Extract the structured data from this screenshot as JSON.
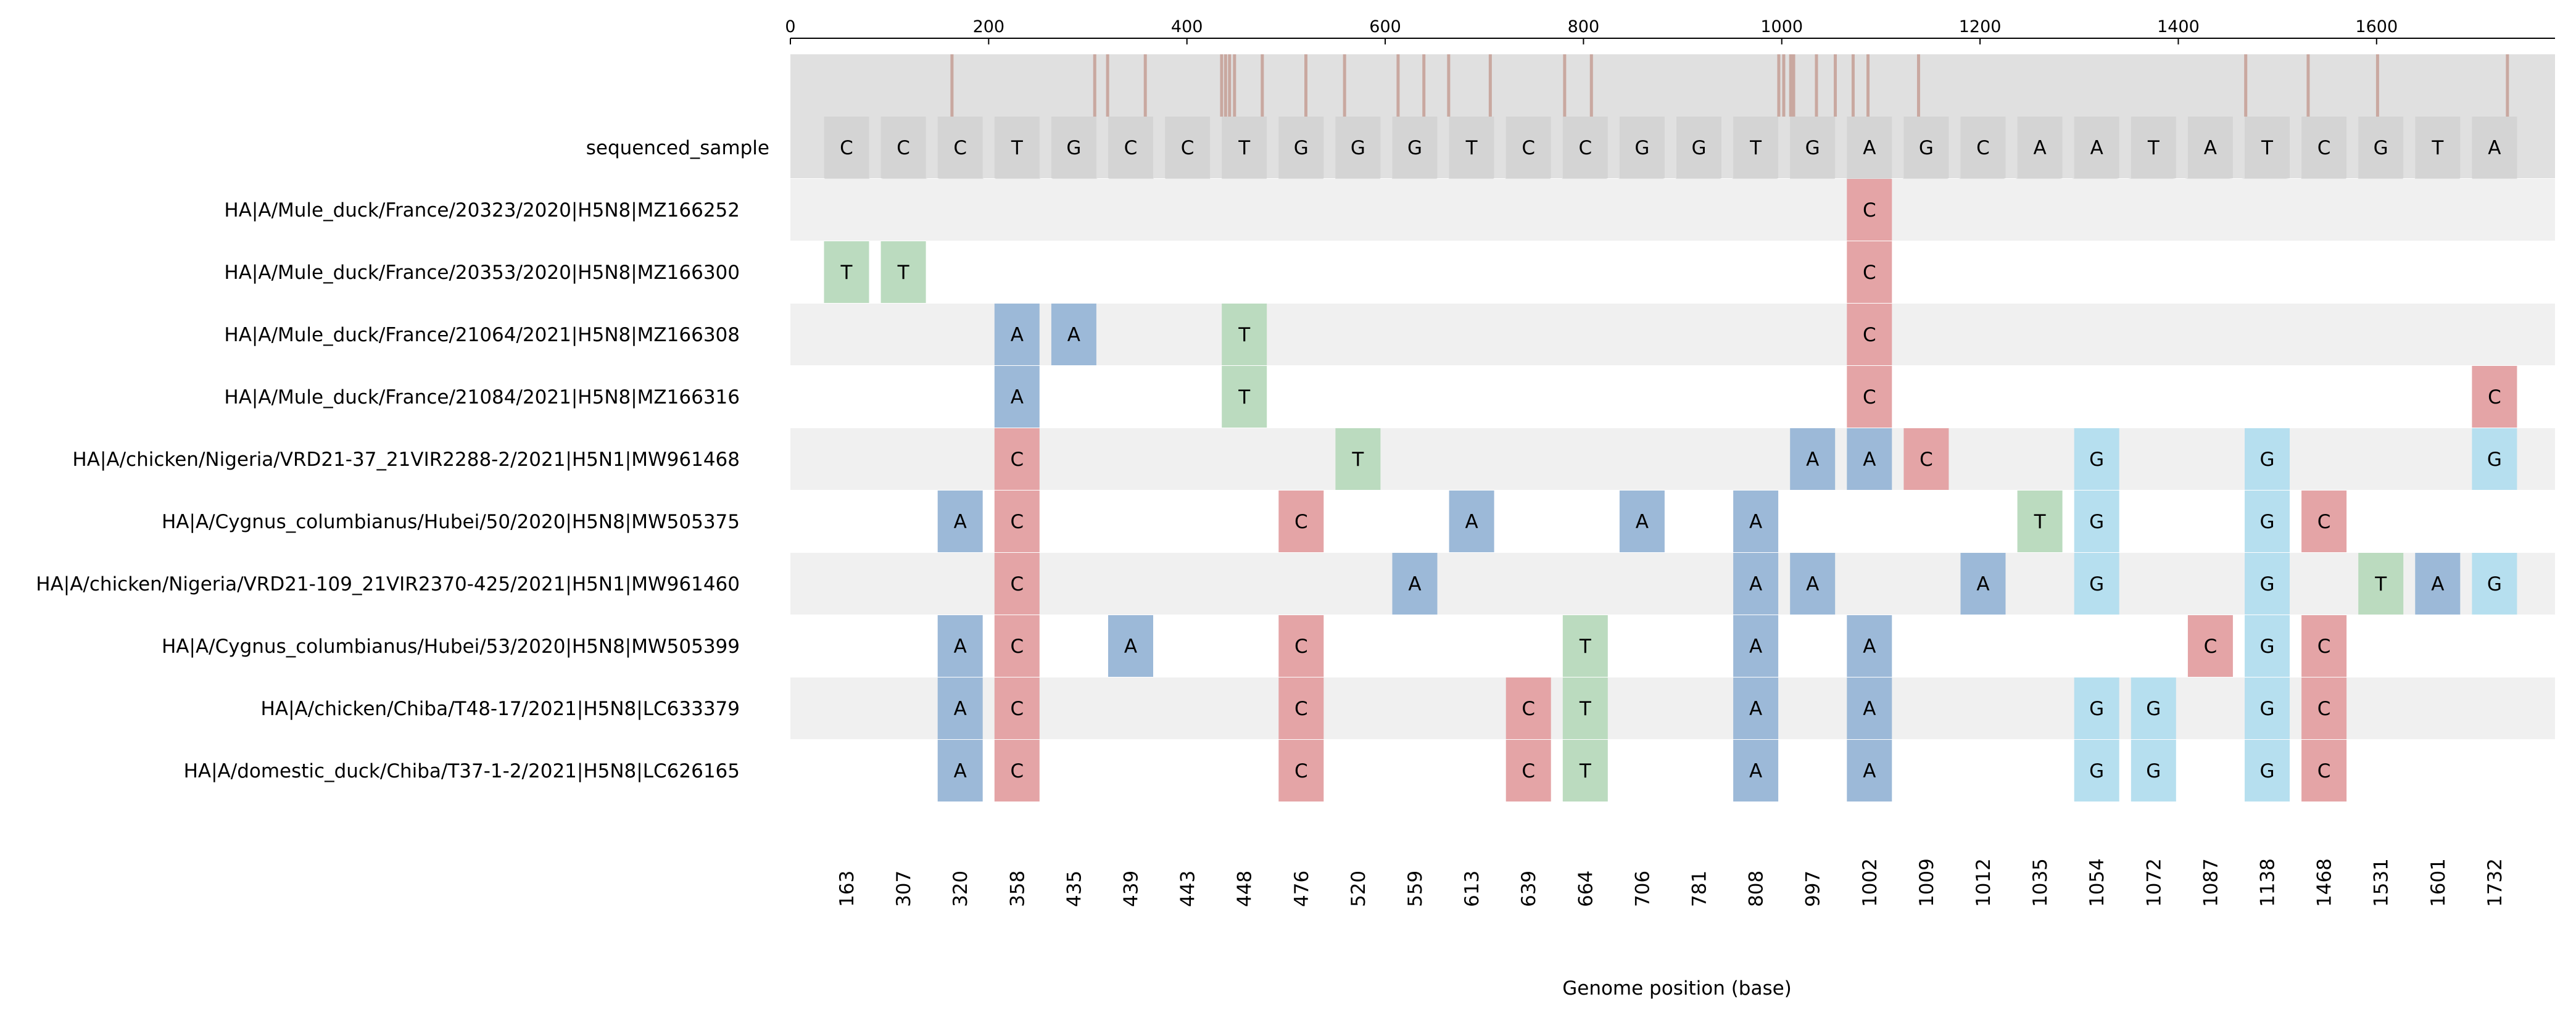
{
  "chart_data": {
    "type": "heatmap",
    "title": "",
    "xlabel": "Genome position (base)",
    "ylabel": "",
    "genome_axis": {
      "range": [
        0,
        1780
      ],
      "ticks": [
        0,
        200,
        400,
        600,
        800,
        1000,
        1200,
        1400,
        1600
      ]
    },
    "positions": [
      163,
      307,
      320,
      358,
      435,
      439,
      443,
      448,
      476,
      520,
      559,
      613,
      639,
      664,
      706,
      781,
      808,
      997,
      1002,
      1009,
      1012,
      1035,
      1054,
      1072,
      1087,
      1138,
      1468,
      1531,
      1601,
      1732
    ],
    "reference": {
      "name": "sequenced_sample",
      "bases": [
        "C",
        "C",
        "C",
        "T",
        "G",
        "C",
        "C",
        "T",
        "G",
        "G",
        "G",
        "T",
        "C",
        "C",
        "G",
        "G",
        "T",
        "G",
        "A",
        "G",
        "C",
        "A",
        "A",
        "T",
        "A",
        "T",
        "C",
        "G",
        "T",
        "A"
      ]
    },
    "samples": [
      {
        "name": "HA|A/Mule_duck/France/20323/2020|H5N8|MZ166252",
        "variants": {
          "1002": "C"
        }
      },
      {
        "name": "HA|A/Mule_duck/France/20353/2020|H5N8|MZ166300",
        "variants": {
          "163": "T",
          "307": "T",
          "1002": "C"
        }
      },
      {
        "name": "HA|A/Mule_duck/France/21064/2021|H5N8|MZ166308",
        "variants": {
          "358": "A",
          "435": "A",
          "448": "T",
          "1002": "C"
        }
      },
      {
        "name": "HA|A/Mule_duck/France/21084/2021|H5N8|MZ166316",
        "variants": {
          "358": "A",
          "448": "T",
          "1002": "C",
          "1732": "C"
        }
      },
      {
        "name": "HA|A/chicken/Nigeria/VRD21-37_21VIR2288-2/2021|H5N1|MW961468",
        "variants": {
          "358": "C",
          "520": "T",
          "997": "A",
          "1002": "A",
          "1009": "C",
          "1054": "G",
          "1138": "G",
          "1732": "G"
        }
      },
      {
        "name": "HA|A/Cygnus_columbianus/Hubei/50/2020|H5N8|MW505375",
        "variants": {
          "320": "A",
          "358": "C",
          "476": "C",
          "613": "A",
          "706": "A",
          "808": "A",
          "1035": "T",
          "1054": "G",
          "1138": "G",
          "1468": "C"
        }
      },
      {
        "name": "HA|A/chicken/Nigeria/VRD21-109_21VIR2370-425/2021|H5N1|MW961460",
        "variants": {
          "358": "C",
          "559": "A",
          "808": "A",
          "997": "A",
          "1012": "A",
          "1054": "G",
          "1138": "G",
          "1531": "T",
          "1601": "A",
          "1732": "G"
        }
      },
      {
        "name": "HA|A/Cygnus_columbianus/Hubei/53/2020|H5N8|MW505399",
        "variants": {
          "320": "A",
          "358": "C",
          "439": "A",
          "476": "C",
          "664": "T",
          "808": "A",
          "1002": "A",
          "1087": "C",
          "1138": "G",
          "1468": "C"
        }
      },
      {
        "name": "HA|A/chicken/Chiba/T48-17/2021|H5N8|LC633379",
        "variants": {
          "320": "A",
          "358": "C",
          "476": "C",
          "639": "C",
          "664": "T",
          "808": "A",
          "1002": "A",
          "1054": "G",
          "1072": "G",
          "1138": "G",
          "1468": "C"
        }
      },
      {
        "name": "HA|A/domestic_duck/Chiba/T37-1-2/2021|H5N8|LC626165",
        "variants": {
          "320": "A",
          "358": "C",
          "476": "C",
          "639": "C",
          "664": "T",
          "808": "A",
          "1002": "A",
          "1054": "G",
          "1072": "G",
          "1138": "G",
          "1468": "C"
        }
      }
    ],
    "colors": {
      "A": "#9cb9d8",
      "C": "#e4a4a6",
      "G": "#b6dfef",
      "T": "#bbdbbf",
      "reference_cell": "#d4d4d4",
      "reference_band": "#e0e0e0",
      "row_stripe": "#f0f0f0",
      "genome_bar": "#e0e0e0",
      "marker": "#c9a8a0",
      "fan": "#e0e0e0"
    }
  }
}
